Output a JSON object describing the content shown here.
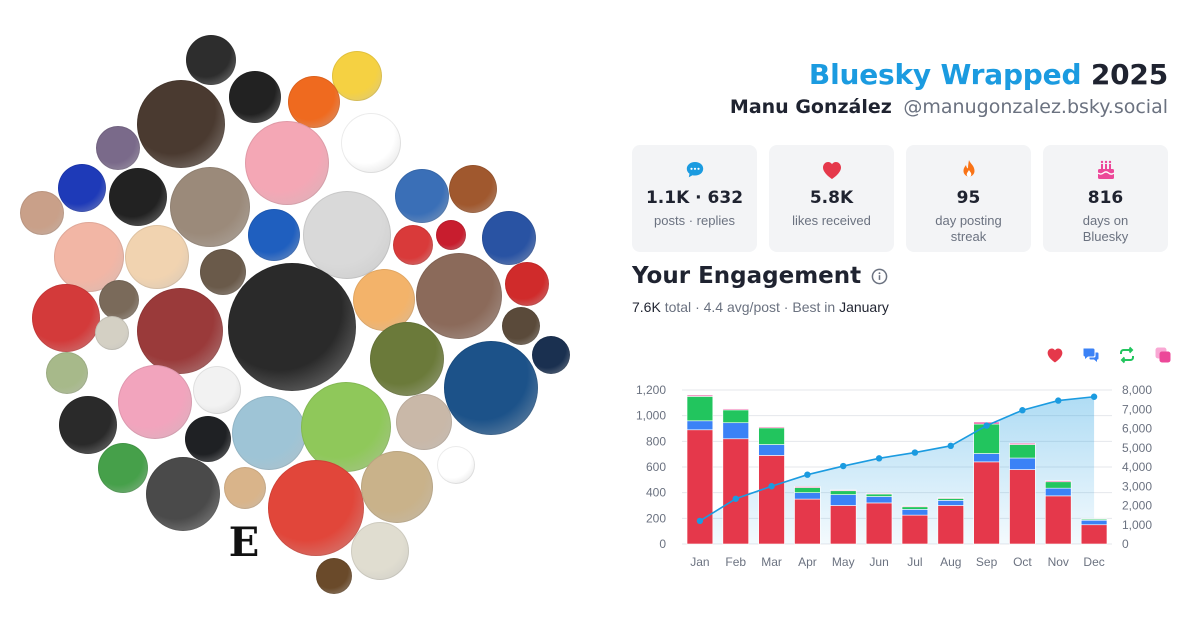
{
  "header": {
    "title_brand": "Bluesky Wrapped",
    "title_year": "2025",
    "user_name": "Manu González",
    "user_handle": "@manugonzalez.bsky.social"
  },
  "stats": [
    {
      "icon": "chat-bubble-icon",
      "value": "1.1K · 632",
      "label": "posts · replies",
      "color": "#1b9be0"
    },
    {
      "icon": "heart-icon",
      "value": "5.8K",
      "label": "likes received",
      "color": "#e5384b"
    },
    {
      "icon": "flame-icon",
      "value": "95",
      "label": "day posting streak",
      "color": "#f97316"
    },
    {
      "icon": "cake-icon",
      "value": "816",
      "label": "days on Bluesky",
      "color": "#ec4899"
    }
  ],
  "engagement": {
    "title": "Your Engagement",
    "total": "7.6K",
    "total_label": "total",
    "avg": "4.4 avg/post",
    "best_label": "Best in",
    "best_month": "January"
  },
  "legend": [
    {
      "icon": "heart-icon",
      "color": "#e5384b"
    },
    {
      "icon": "reply-icon",
      "color": "#3b82f6"
    },
    {
      "icon": "repost-icon",
      "color": "#22c55e"
    },
    {
      "icon": "quote-icon",
      "color": "#ec4899"
    }
  ],
  "chart_data": {
    "type": "bar",
    "stacked": true,
    "categories": [
      "Jan",
      "Feb",
      "Mar",
      "Apr",
      "May",
      "Jun",
      "Jul",
      "Aug",
      "Sep",
      "Oct",
      "Nov",
      "Dec"
    ],
    "series": [
      {
        "color": "#e5384b",
        "values": [
          890,
          820,
          690,
          350,
          300,
          320,
          225,
          300,
          640,
          580,
          375,
          150
        ]
      },
      {
        "color": "#3b82f6",
        "values": [
          70,
          125,
          85,
          50,
          85,
          50,
          45,
          40,
          65,
          90,
          60,
          35
        ]
      },
      {
        "color": "#22c55e",
        "values": [
          190,
          100,
          130,
          40,
          30,
          20,
          20,
          15,
          230,
          105,
          50,
          8
        ]
      },
      {
        "color": "#ec4899",
        "values": [
          10,
          8,
          8,
          8,
          6,
          6,
          6,
          6,
          15,
          10,
          8,
          4
        ]
      }
    ],
    "cumulative": {
      "color": "#1b9be0",
      "values": [
        1200,
        2350,
        3000,
        3600,
        4050,
        4450,
        4750,
        5100,
        6150,
        6950,
        7450,
        7650
      ]
    },
    "ylim": [
      0,
      1200
    ],
    "yticks": [
      "1,200",
      "1,000",
      "800",
      "600",
      "400",
      "200",
      "0"
    ],
    "y2lim": [
      0,
      8000
    ],
    "y2ticks": [
      "8,000",
      "7,000",
      "6,000",
      "5,000",
      "4,000",
      "3,000",
      "2,000",
      "1,000",
      "0"
    ],
    "grid": true
  },
  "avatars": [
    {
      "name": "avatar-1",
      "color": "#2d2d2d"
    },
    {
      "name": "avatar-2",
      "color": "#f5d142"
    },
    {
      "name": "avatar-3",
      "color": "#222"
    },
    {
      "name": "avatar-4",
      "color": "#ef6a1f"
    },
    {
      "name": "avatar-5",
      "color": "#4a3a30"
    },
    {
      "name": "avatar-6",
      "color": "#f4a7b5"
    },
    {
      "name": "avatar-7",
      "color": "#ffffff"
    },
    {
      "name": "avatar-8",
      "color": "#7a6a8a"
    },
    {
      "name": "avatar-9",
      "color": "#1e3ab8"
    },
    {
      "name": "avatar-10",
      "color": "#222"
    },
    {
      "name": "avatar-11",
      "color": "#9b8a7a"
    },
    {
      "name": "avatar-12",
      "color": "#3a6fb7"
    },
    {
      "name": "avatar-13",
      "color": "#a0582e"
    },
    {
      "name": "avatar-14",
      "color": "#c9a089"
    },
    {
      "name": "avatar-15",
      "color": "#f1d3b0"
    },
    {
      "name": "avatar-16",
      "color": "#1f5fbf"
    },
    {
      "name": "avatar-17",
      "color": "#d9d9d9"
    },
    {
      "name": "avatar-18",
      "color": "#d93a3a"
    },
    {
      "name": "avatar-19",
      "color": "#c81d2e"
    },
    {
      "name": "avatar-20",
      "color": "#2953a3"
    },
    {
      "name": "avatar-21",
      "color": "#f2b6a5"
    },
    {
      "name": "avatar-22",
      "color": "#6a5a4a"
    },
    {
      "name": "avatar-23",
      "color": "#f3b36a"
    },
    {
      "name": "avatar-24",
      "color": "#8b6a5a"
    },
    {
      "name": "avatar-25",
      "color": "#d02b2b"
    },
    {
      "name": "avatar-26",
      "color": "#7a6a5a"
    },
    {
      "name": "avatar-27",
      "color": "#d33a3a"
    },
    {
      "name": "avatar-28",
      "color": "#9a3a3a"
    },
    {
      "name": "avatar-29",
      "color": "#2a2a2a"
    },
    {
      "name": "avatar-30",
      "color": "#6b7a3a"
    },
    {
      "name": "avatar-31",
      "color": "#5a4a3a"
    },
    {
      "name": "avatar-32",
      "color": "#1c5289"
    },
    {
      "name": "avatar-33",
      "color": "#1a3050"
    },
    {
      "name": "avatar-34",
      "color": "#d4d0c4"
    },
    {
      "name": "avatar-35",
      "color": "#a7b98a"
    },
    {
      "name": "avatar-36",
      "color": "#f2a4bd"
    },
    {
      "name": "avatar-37",
      "color": "#f2f2f2"
    },
    {
      "name": "avatar-38",
      "color": "#2a2a2a"
    },
    {
      "name": "avatar-39",
      "color": "#1f2124"
    },
    {
      "name": "avatar-40",
      "color": "#9ec4d6"
    },
    {
      "name": "avatar-41",
      "color": "#8fc85a"
    },
    {
      "name": "avatar-42",
      "color": "#c9b8a8"
    },
    {
      "name": "avatar-43",
      "color": "#ffffff"
    },
    {
      "name": "avatar-44",
      "color": "#46a04a"
    },
    {
      "name": "avatar-45",
      "color": "#4a4a4a"
    },
    {
      "name": "avatar-46",
      "color": "#d9b48a"
    },
    {
      "name": "avatar-47",
      "color": "#e1463a"
    },
    {
      "name": "avatar-48",
      "color": "#c9b28a"
    },
    {
      "name": "avatar-49",
      "color": "#e0ddd0"
    },
    {
      "name": "avatar-50",
      "color": "#6a4a2a"
    },
    {
      "name": "logo-e",
      "text": "E"
    }
  ]
}
